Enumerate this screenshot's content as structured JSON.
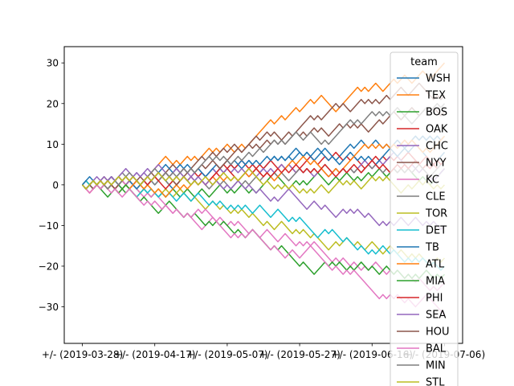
{
  "chart_data": {
    "type": "line",
    "title": "",
    "xlabel": "",
    "ylabel": "",
    "x_tick_labels": [
      "+/- (2019-03-28)",
      "+/- (2019-04-17)",
      "+/- (2019-05-07)",
      "+/- (2019-05-27)",
      "+/- (2019-06-16)",
      "+/- (2019-07-06)"
    ],
    "y_ticks": [
      -30,
      -20,
      -10,
      0,
      10,
      20,
      30
    ],
    "xlim": [
      -5,
      105
    ],
    "ylim": [
      -39,
      34
    ],
    "n_points": 101,
    "legend": {
      "title": "team",
      "placement": "upper right"
    },
    "series": [
      {
        "name": "WSH",
        "color": "#1f77b4",
        "final": 12,
        "anchors": [
          0,
          1,
          5,
          9,
          12
        ]
      },
      {
        "name": "TEX",
        "color": "#ff7f0e",
        "final": 29,
        "anchors": [
          0,
          3,
          10,
          19,
          24,
          29
        ]
      },
      {
        "name": "BOS",
        "color": "#2ca02c",
        "final": 3,
        "anchors": [
          0,
          -2,
          0,
          2,
          3
        ]
      },
      {
        "name": "OAK",
        "color": "#d62728",
        "final": 6,
        "anchors": [
          0,
          1,
          3,
          5,
          7,
          6
        ]
      },
      {
        "name": "CHC",
        "color": "#9467bd",
        "final": 4,
        "anchors": [
          0,
          2,
          4,
          3,
          5,
          4
        ]
      },
      {
        "name": "NYY",
        "color": "#8c564b",
        "final": 22,
        "anchors": [
          0,
          3,
          9,
          17,
          21,
          22
        ]
      },
      {
        "name": "KC",
        "color": "#e377c2",
        "final": -25,
        "anchors": [
          0,
          -3,
          -9,
          -15,
          -21,
          -25
        ]
      },
      {
        "name": "CLE",
        "color": "#7f7f7f",
        "final": 5,
        "anchors": [
          0,
          1,
          0,
          3,
          4,
          5
        ]
      },
      {
        "name": "TOR",
        "color": "#bcbd22",
        "final": -19,
        "anchors": [
          0,
          -2,
          -6,
          -12,
          -16,
          -19
        ]
      },
      {
        "name": "DET",
        "color": "#17becf",
        "final": -20,
        "anchors": [
          0,
          -2,
          -5,
          -10,
          -16,
          -20
        ]
      },
      {
        "name": "TB",
        "color": "#1f77b4",
        "final": 9,
        "anchors": [
          0,
          4,
          6,
          7,
          9
        ]
      },
      {
        "name": "ATL",
        "color": "#ff7f0e",
        "final": 11,
        "anchors": [
          0,
          -2,
          1,
          5,
          9,
          11
        ]
      },
      {
        "name": "MIA",
        "color": "#2ca02c",
        "final": -22,
        "anchors": [
          0,
          -4,
          -11,
          -18,
          -21,
          -22
        ]
      },
      {
        "name": "PHI",
        "color": "#d62728",
        "final": 5,
        "anchors": [
          0,
          1,
          3,
          4,
          5
        ]
      },
      {
        "name": "SEA",
        "color": "#9467bd",
        "final": -10,
        "anchors": [
          0,
          4,
          0,
          -5,
          -9,
          -10
        ]
      },
      {
        "name": "HOU",
        "color": "#8c564b",
        "final": 19,
        "anchors": [
          0,
          2,
          7,
          13,
          17,
          19
        ]
      },
      {
        "name": "BAL",
        "color": "#e377c2",
        "final": -33,
        "anchors": [
          0,
          -4,
          -11,
          -18,
          -26,
          -33
        ]
      },
      {
        "name": "MIN",
        "color": "#7f7f7f",
        "final": 20,
        "anchors": [
          0,
          1,
          6,
          12,
          17,
          20
        ]
      },
      {
        "name": "STL",
        "color": "#bcbd22",
        "final": 0,
        "anchors": [
          0,
          2,
          1,
          -1,
          1,
          0
        ]
      }
    ]
  }
}
